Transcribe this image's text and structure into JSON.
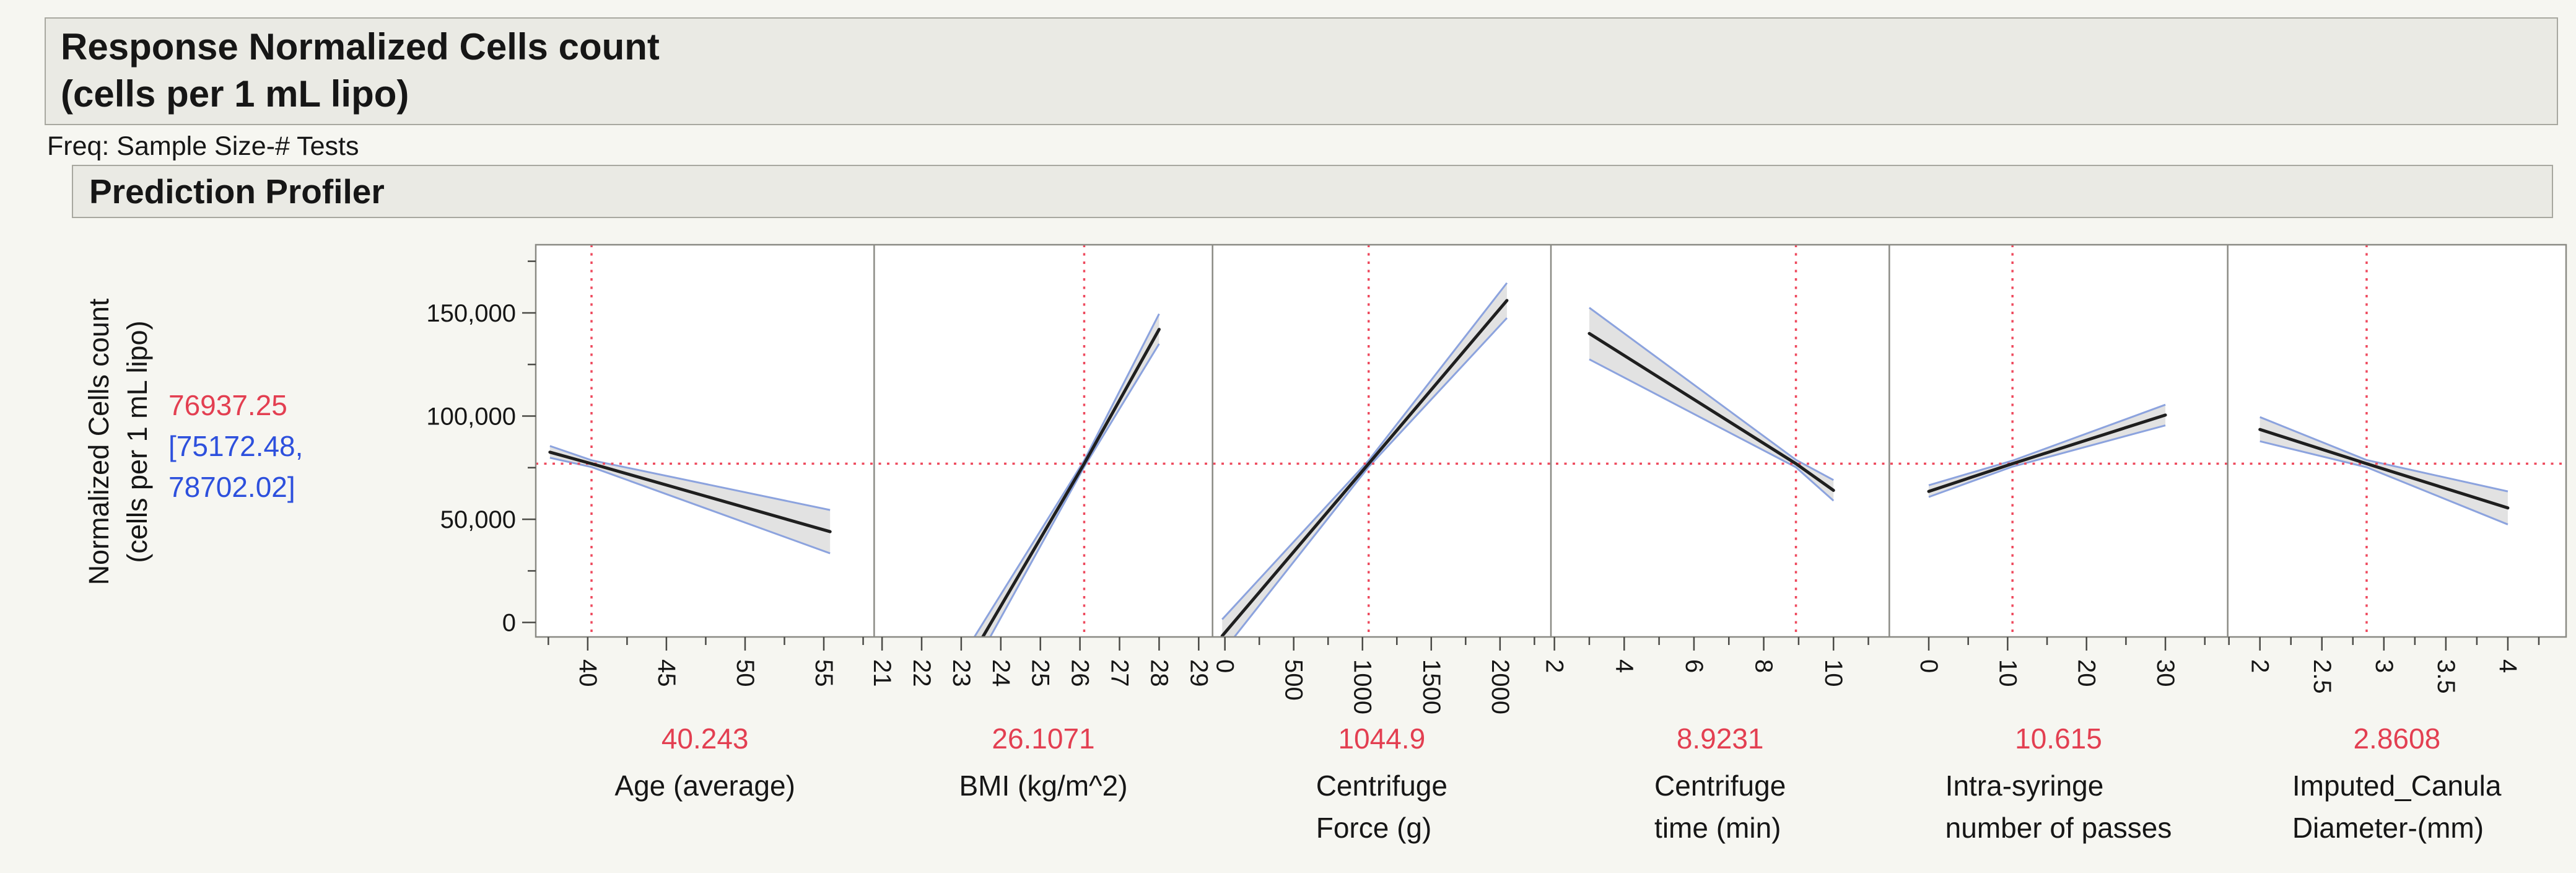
{
  "header": {
    "title_line1": "Response Normalized Cells count",
    "title_line2": "(cells per 1 mL lipo)",
    "freq_note": "Freq: Sample Size-# Tests",
    "section_title": "Prediction Profiler"
  },
  "chart_data": {
    "type": "line",
    "title": "Prediction Profiler",
    "layout": "6 horizontal profile panels sharing one y axis, red dotted crosshairs, gray confidence bands with blue edges, black fit lines",
    "colors": {
      "red": "#e33f51",
      "red_dotted": "#ee4a5e",
      "blue_text": "#2d50dd",
      "band_edge": "#8ca3de",
      "band_fill": "#dbdbdb",
      "fit_line": "#1f1f1f",
      "frame": "#8a8a84",
      "tick": "#4a4a46",
      "panel_bg": "#ffffff"
    },
    "y_axis": {
      "label_line1": "Normalized Cells count",
      "label_line2": "(cells per 1 mL lipo)",
      "range": [
        -7000,
        183000
      ],
      "ticks": [
        0,
        50000,
        100000,
        150000
      ],
      "tick_labels": [
        "0",
        "50,000",
        "100,000",
        "150,000"
      ],
      "minor_ticks": [
        25000,
        75000,
        125000,
        175000
      ]
    },
    "prediction": {
      "value_text": "76937.25",
      "ci_line1": "[75172.48,",
      "ci_line2": "78702.02]",
      "y": 76937.25
    },
    "panels": [
      {
        "id": "age",
        "name_lines": [
          "Age (average)"
        ],
        "value_label": "40.243",
        "value": 40.243,
        "domain": [
          36.7,
          58.2
        ],
        "ticks": [
          40,
          45,
          50,
          55
        ],
        "tick_labels": [
          "40",
          "45",
          "50",
          "55"
        ],
        "minor_ticks": [
          37.5,
          42.5,
          47.5,
          52.5,
          57.5
        ],
        "line": {
          "x": [
            37.6,
            40.243,
            55.4
          ],
          "y": [
            82500,
            76937,
            44000
          ],
          "upper": [
            85500,
            78600,
            54500
          ],
          "lower": [
            79800,
            75300,
            33500
          ]
        }
      },
      {
        "id": "bmi",
        "name_lines": [
          "BMI (kg/m^2)"
        ],
        "value_label": "26.1071",
        "value": 26.1071,
        "domain": [
          20.8,
          29.35
        ],
        "ticks": [
          21,
          22,
          23,
          24,
          25,
          26,
          27,
          28,
          29
        ],
        "tick_labels": [
          "21",
          "22",
          "23",
          "24",
          "25",
          "26",
          "27",
          "28",
          "29"
        ],
        "minor_ticks": [],
        "line": {
          "x": [
            23.3,
            26.1071,
            28.0
          ],
          "y": [
            -15000,
            76937,
            142000
          ],
          "upper": [
            -8000,
            78500,
            149500
          ],
          "lower": [
            -22000,
            75400,
            135000
          ]
        }
      },
      {
        "id": "force",
        "name_lines": [
          "Centrifuge",
          "Force (g)"
        ],
        "value_label": "1044.9",
        "value": 1044.9,
        "domain": [
          -90,
          2370
        ],
        "ticks": [
          0,
          500,
          1000,
          1500,
          2000
        ],
        "tick_labels": [
          "0",
          "500",
          "1000",
          "1500",
          "2000"
        ],
        "minor_ticks": [
          250,
          750,
          1250,
          1750,
          2250
        ],
        "line": {
          "x": [
            -20,
            1044.9,
            2050
          ],
          "y": [
            -6500,
            76937,
            156000
          ],
          "upper": [
            1500,
            78500,
            164500
          ],
          "lower": [
            -14500,
            75400,
            147500
          ]
        }
      },
      {
        "id": "time",
        "name_lines": [
          "Centrifuge",
          "time (min)"
        ],
        "value_label": "8.9231",
        "value": 8.9231,
        "domain": [
          1.9,
          11.6
        ],
        "ticks": [
          2,
          4,
          6,
          8,
          10
        ],
        "tick_labels": [
          "2",
          "4",
          "6",
          "8",
          "10"
        ],
        "minor_ticks": [
          3,
          5,
          7,
          9,
          11
        ],
        "line": {
          "x": [
            3.0,
            8.9231,
            10.0
          ],
          "y": [
            140000,
            76937,
            64000
          ],
          "upper": [
            152500,
            78800,
            69000
          ],
          "lower": [
            127500,
            75200,
            59000
          ]
        }
      },
      {
        "id": "passes",
        "name_lines": [
          "Intra-syringe",
          "number of passes"
        ],
        "value_label": "10.615",
        "value": 10.615,
        "domain": [
          -5,
          37.9
        ],
        "ticks": [
          0,
          10,
          20,
          30
        ],
        "tick_labels": [
          "0",
          "10",
          "20",
          "30"
        ],
        "minor_ticks": [
          5,
          15,
          25,
          35
        ],
        "line": {
          "x": [
            0,
            10.615,
            30
          ],
          "y": [
            63500,
            76937,
            100500
          ],
          "upper": [
            66500,
            78400,
            105500
          ],
          "lower": [
            60800,
            75500,
            95500
          ]
        }
      },
      {
        "id": "diameter",
        "name_lines": [
          "Imputed_Canula",
          "Diameter-(mm)"
        ],
        "value_label": "2.8608",
        "value": 2.8608,
        "domain": [
          1.74,
          4.47
        ],
        "ticks": [
          2,
          2.5,
          3,
          3.5,
          4
        ],
        "tick_labels": [
          "2",
          "2.5",
          "3",
          "3.5",
          "4"
        ],
        "minor_ticks": [
          1.75,
          2.25,
          2.75,
          3.25,
          3.75,
          4.25
        ],
        "line": {
          "x": [
            2.0,
            2.8608,
            4.0
          ],
          "y": [
            93500,
            76937,
            55500
          ],
          "upper": [
            99500,
            78700,
            63500
          ],
          "lower": [
            87800,
            75200,
            47500
          ]
        }
      }
    ]
  }
}
